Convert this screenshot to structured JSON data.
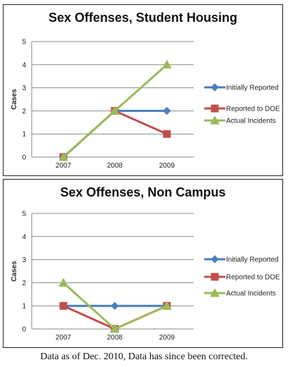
{
  "chart_data": [
    {
      "type": "line",
      "title": "Sex Offenses, Student Housing",
      "ylabel": "Cases",
      "xlabel": "",
      "categories": [
        "2007",
        "2008",
        "2009"
      ],
      "ylim": [
        0,
        5
      ],
      "yticks": [
        0,
        1,
        2,
        3,
        4,
        5
      ],
      "grid": true,
      "legend_position": "right",
      "series": [
        {
          "name": "Initially Reported",
          "values": [
            0,
            2,
            2
          ],
          "color": "#4a7ebb",
          "marker": "diamond"
        },
        {
          "name": "Reported to DOE",
          "values": [
            0,
            2,
            1
          ],
          "color": "#c0504d",
          "marker": "square"
        },
        {
          "name": "Actual Incidents",
          "values": [
            0,
            2,
            4
          ],
          "color": "#9bbb59",
          "marker": "triangle"
        }
      ]
    },
    {
      "type": "line",
      "title": "Sex Offenses, Non Campus",
      "ylabel": "Cases",
      "xlabel": "",
      "categories": [
        "2007",
        "2008",
        "2009"
      ],
      "ylim": [
        0,
        5
      ],
      "yticks": [
        0,
        1,
        2,
        3,
        4,
        5
      ],
      "grid": true,
      "legend_position": "right",
      "series": [
        {
          "name": "Initially Reported",
          "values": [
            1,
            1,
            1
          ],
          "color": "#4a7ebb",
          "marker": "diamond"
        },
        {
          "name": "Reported to DOE",
          "values": [
            1,
            0,
            1
          ],
          "color": "#c0504d",
          "marker": "square"
        },
        {
          "name": "Actual Incidents",
          "values": [
            2,
            0,
            1
          ],
          "color": "#9bbb59",
          "marker": "triangle"
        }
      ]
    }
  ],
  "footer": {
    "note": "Data as of Dec. 2010, Data has since been corrected."
  }
}
